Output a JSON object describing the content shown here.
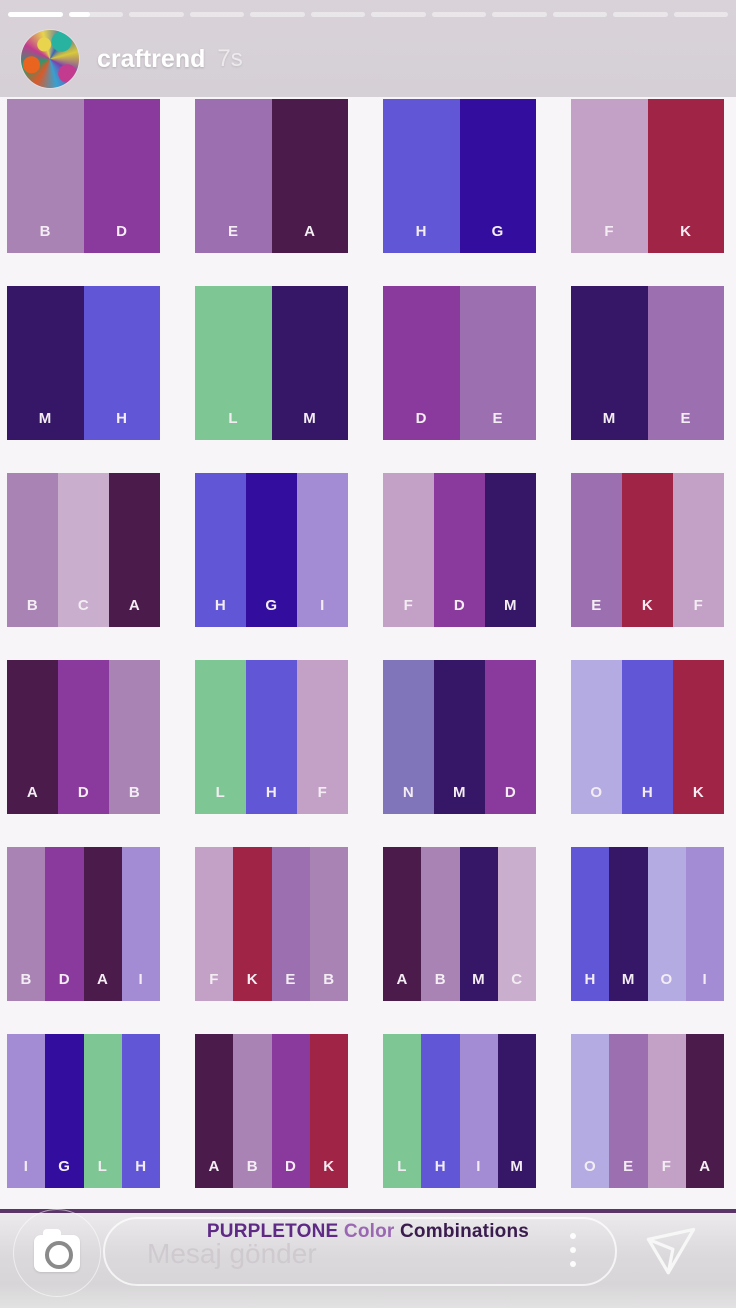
{
  "story": {
    "username": "craftrend",
    "time": "7s",
    "progress": {
      "segments": 12,
      "completed": 1,
      "current_fill_pct": 40
    }
  },
  "poster": {
    "title": {
      "part1": "PURPLETONE",
      "part2": "Color",
      "part3": "Combinations"
    },
    "title_colors": {
      "part1": "#5f2a85",
      "part2": "#9a68b2",
      "part3": "#3a1d4e"
    },
    "accent_line_color": "#5a3568",
    "background_color": "#f8f5f8",
    "palette": {
      "A": "#4a1b4b",
      "B": "#a883b4",
      "C": "#c9aecd",
      "D": "#8a3a9c",
      "E": "#9c70b0",
      "F": "#c3a0c6",
      "G": "#330d9e",
      "H": "#6157d6",
      "I": "#a48cd4",
      "K": "#a02446",
      "L": "#7ec795",
      "M": "#361767",
      "N": "#8074ba",
      "O": "#b3abe2"
    },
    "cells": [
      [
        "B",
        "D"
      ],
      [
        "E",
        "A"
      ],
      [
        "H",
        "G"
      ],
      [
        "F",
        "K"
      ],
      [
        "M",
        "H"
      ],
      [
        "L",
        "M"
      ],
      [
        "D",
        "E"
      ],
      [
        "M",
        "E"
      ],
      [
        "B",
        "C",
        "A"
      ],
      [
        "H",
        "G",
        "I"
      ],
      [
        "F",
        "D",
        "M"
      ],
      [
        "E",
        "K",
        "F"
      ],
      [
        "A",
        "D",
        "B"
      ],
      [
        "L",
        "H",
        "F"
      ],
      [
        "N",
        "M",
        "D"
      ],
      [
        "O",
        "H",
        "K"
      ],
      [
        "B",
        "D",
        "A",
        "I"
      ],
      [
        "F",
        "K",
        "E",
        "B"
      ],
      [
        "A",
        "B",
        "M",
        "C"
      ],
      [
        "H",
        "M",
        "O",
        "I"
      ],
      [
        "I",
        "G",
        "L",
        "H"
      ],
      [
        "A",
        "B",
        "D",
        "K"
      ],
      [
        "L",
        "H",
        "I",
        "M"
      ],
      [
        "O",
        "E",
        "F",
        "A"
      ]
    ]
  },
  "reply": {
    "placeholder": "Mesaj gönder",
    "icons": {
      "left": "camera-icon",
      "menu": "kebab-dots-icon",
      "right": "send-plane-icon"
    }
  }
}
